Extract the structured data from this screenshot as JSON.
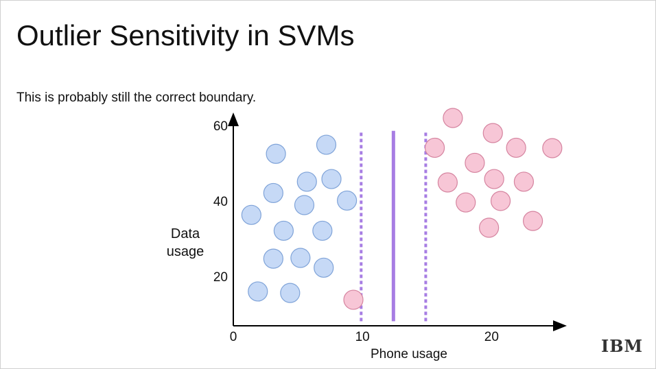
{
  "heading": "Outlier Sensitivity in SVMs",
  "subheading": "This is probably still the correct boundary.",
  "logo": "IBM",
  "chart_data": {
    "type": "scatter",
    "xlabel": "Phone usage",
    "ylabel": "Data usage",
    "xlim": [
      0,
      25.4
    ],
    "ylim": [
      7.3,
      62.4
    ],
    "xticks": [
      0,
      10,
      20
    ],
    "yticks": [
      20,
      40,
      60
    ],
    "series": [
      {
        "color": "#c6d9f6",
        "x": [
          3.3,
          7.2,
          3.1,
          5.7,
          7.6,
          5.5,
          8.8,
          1.4,
          3.9,
          6.9,
          3.1,
          5.2,
          7.0,
          1.9,
          4.4
        ],
        "values": [
          52.9,
          55.3,
          42.5,
          45.5,
          46.2,
          39.3,
          40.5,
          36.7,
          32.5,
          32.5,
          25.1,
          25.3,
          22.7,
          16.4,
          16.0
        ]
      },
      {
        "color": "#f7c6d6",
        "x": [
          9.3,
          17.0,
          20.1,
          15.6,
          21.9,
          24.7,
          18.7,
          16.6,
          20.2,
          22.5,
          18.0,
          20.7,
          19.8,
          23.2
        ],
        "values": [
          14.2,
          62.4,
          58.4,
          54.5,
          54.5,
          54.4,
          50.5,
          45.3,
          46.2,
          45.5,
          40.0,
          40.4,
          33.3,
          35.1
        ]
      }
    ],
    "boundary_color": "#a77de3",
    "boundaries": [
      {
        "x": 9.9,
        "style": "dashed"
      },
      {
        "x": 12.4,
        "style": "solid"
      },
      {
        "x": 14.9,
        "style": "dashed"
      }
    ],
    "boundary_span": [
      8.5,
      59
    ]
  }
}
